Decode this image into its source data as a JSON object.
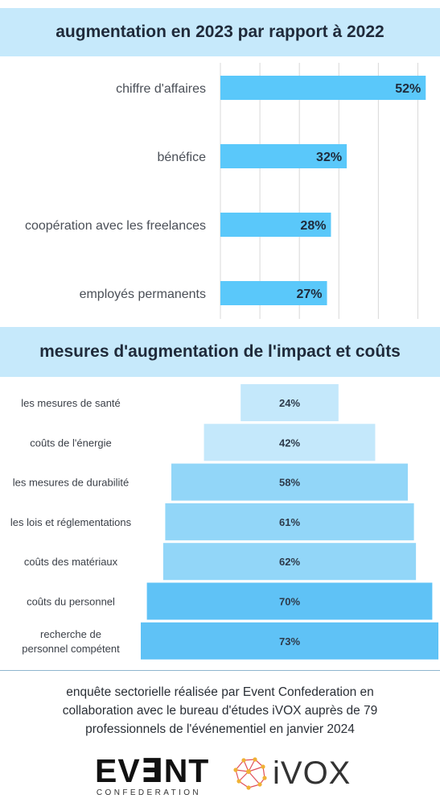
{
  "chart_data": [
    {
      "type": "bar",
      "orientation": "horizontal",
      "title": "augmentation en 2023 par rapport à 2022",
      "categories": [
        "chiffre d'affaires",
        "bénéfice",
        "coopération avec les freelances",
        "employés permanents"
      ],
      "values": [
        52,
        32,
        28,
        27
      ],
      "value_labels": [
        "52%",
        "32%",
        "28%",
        "27%"
      ],
      "unit": "%",
      "xlim": [
        0,
        55
      ],
      "grid": true,
      "bar_color": "#5ac8fa"
    },
    {
      "type": "bar",
      "orientation": "centered",
      "title": "mesures d'augmentation de l'impact et coûts",
      "categories": [
        "les mesures de santé",
        "coûts de l'énergie",
        "les mesures de durabilité",
        "les lois et réglementations",
        "coûts des matériaux",
        "coûts du personnel",
        "recherche de personnel compétent"
      ],
      "category_lines": [
        [
          "les mesures de santé"
        ],
        [
          "coûts de l'énergie"
        ],
        [
          "les mesures de durabilité"
        ],
        [
          "les lois et réglementations"
        ],
        [
          "coûts des matériaux"
        ],
        [
          "coûts du personnel"
        ],
        [
          "recherche de",
          "personnel compétent"
        ]
      ],
      "values": [
        24,
        42,
        58,
        61,
        62,
        70,
        73
      ],
      "value_labels": [
        "24%",
        "42%",
        "58%",
        "61%",
        "62%",
        "70%",
        "73%"
      ],
      "unit": "%",
      "colors": [
        "#c4e8fb",
        "#c4e8fb",
        "#92d6f8",
        "#92d6f8",
        "#92d6f8",
        "#5fc2f6",
        "#5fc2f6"
      ]
    }
  ],
  "footer": {
    "lines": [
      "enquête sectorielle réalisée par Event Confederation en",
      "collaboration avec le bureau d'études iVOX auprès de 79",
      "professionnels de l'événementiel en janvier 2024"
    ]
  },
  "logos": {
    "event_word": "EV∃NT",
    "event_sub": "CONFEDERATION",
    "ivox_word": "iVOX"
  }
}
